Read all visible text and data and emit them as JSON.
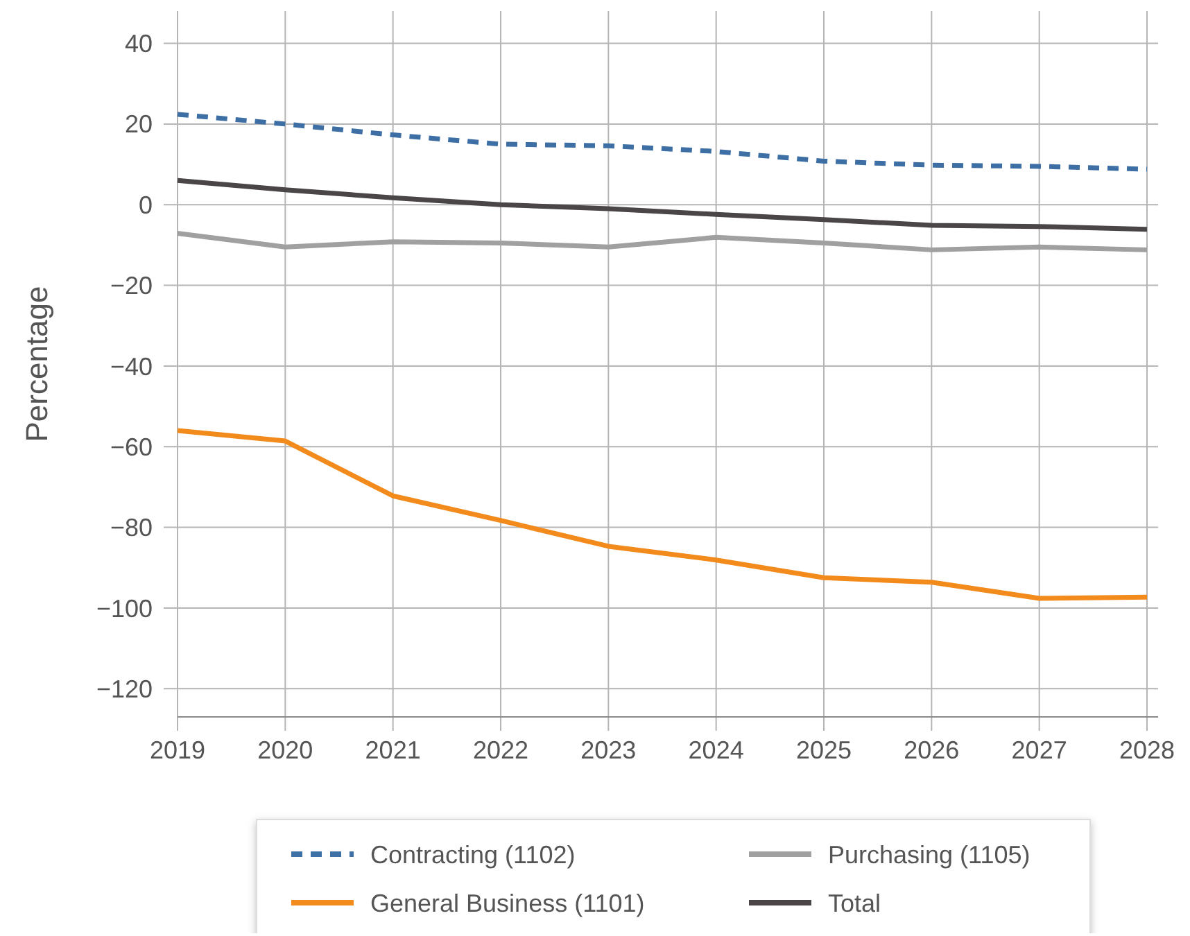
{
  "chart_data": {
    "type": "line",
    "ylabel": "Percentage",
    "x": [
      2019,
      2020,
      2021,
      2022,
      2023,
      2024,
      2025,
      2026,
      2027,
      2028
    ],
    "xlim": [
      2019,
      2028
    ],
    "xticks": [
      2019,
      2020,
      2021,
      2022,
      2023,
      2024,
      2025,
      2026,
      2027,
      2028
    ],
    "ylim": [
      -127,
      48
    ],
    "yticks": [
      {
        "value": 40,
        "label": "40"
      },
      {
        "value": 20,
        "label": "20"
      },
      {
        "value": 0,
        "label": "0"
      },
      {
        "value": -20,
        "label": "−20"
      },
      {
        "value": -40,
        "label": "−40"
      },
      {
        "value": -60,
        "label": "−60"
      },
      {
        "value": -80,
        "label": "−80"
      },
      {
        "value": -100,
        "label": "−100"
      },
      {
        "value": -120,
        "label": "−120"
      }
    ],
    "grid": true,
    "legend": "bottom",
    "marker": "none",
    "series": [
      {
        "name": "Contracting (1102)",
        "color": "#3d6fa5",
        "line_style": "dashed",
        "values": [
          22.4,
          20,
          17.3,
          15,
          14.6,
          13.2,
          10.8,
          9.8,
          9.5,
          8.8
        ]
      },
      {
        "name": "Purchasing (1105)",
        "color": "#a0a0a0",
        "line_style": "solid",
        "values": [
          -7.1,
          -10.5,
          -9.2,
          -9.5,
          -10.5,
          -8.1,
          -9.5,
          -11.2,
          -10.5,
          -11.2
        ]
      },
      {
        "name": "General Business (1101)",
        "color": "#f28a1c",
        "line_style": "solid",
        "values": [
          -56,
          -58.6,
          -72.2,
          -78.3,
          -84.7,
          -88.1,
          -92.5,
          -93.6,
          -97.6,
          -97.3
        ]
      },
      {
        "name": "Total",
        "color": "#4a4546",
        "line_style": "solid",
        "values": [
          6,
          3.7,
          1.7,
          0,
          -1,
          -2.4,
          -3.7,
          -5.1,
          -5.4,
          -6.1
        ]
      }
    ]
  }
}
